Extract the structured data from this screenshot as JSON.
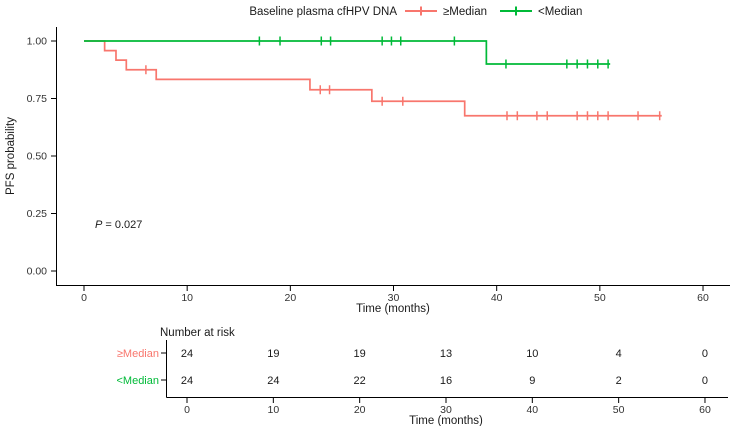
{
  "figure": {
    "background": "#ffffff",
    "text_color": "#333333",
    "axis_color": "#000000"
  },
  "chart_data": {
    "type": "line",
    "subtype": "kaplan_meier_step_curves",
    "legend_title": "Baseline plasma cfHPV DNA",
    "xlabel": "Time (months)",
    "ylabel": "PFS probability",
    "xlim": [
      0,
      62
    ],
    "ylim": [
      0,
      1.0
    ],
    "xticks": [
      0,
      10,
      20,
      30,
      40,
      50,
      60
    ],
    "yticks": [
      0.0,
      0.25,
      0.5,
      0.75,
      1.0
    ],
    "ytick_labels": [
      "0.00",
      "0.25",
      "0.50",
      "0.75",
      "1.00"
    ],
    "grid": "off",
    "legend_position": "top",
    "pvalue": {
      "symbol": "P",
      "rest": " = 0.027"
    },
    "series": [
      {
        "name": "≥Median",
        "color": "#F8766D",
        "steps": [
          [
            0,
            1.0
          ],
          [
            2.0,
            0.958
          ],
          [
            3.1,
            0.917
          ],
          [
            4.1,
            0.875
          ],
          [
            7.0,
            0.833
          ],
          [
            21.9,
            0.788
          ],
          [
            27.9,
            0.738
          ],
          [
            36.9,
            0.675
          ],
          [
            56.0,
            0.675
          ]
        ],
        "censors": [
          [
            6.0,
            0.875
          ],
          [
            22.9,
            0.788
          ],
          [
            23.8,
            0.788
          ],
          [
            28.9,
            0.738
          ],
          [
            30.9,
            0.738
          ],
          [
            41.0,
            0.675
          ],
          [
            42.0,
            0.675
          ],
          [
            43.9,
            0.675
          ],
          [
            44.9,
            0.675
          ],
          [
            47.8,
            0.675
          ],
          [
            48.8,
            0.675
          ],
          [
            49.8,
            0.675
          ],
          [
            50.8,
            0.675
          ],
          [
            53.7,
            0.675
          ],
          [
            55.8,
            0.675
          ]
        ]
      },
      {
        "name": "<Median",
        "color": "#00BA38",
        "steps": [
          [
            0,
            1.0
          ],
          [
            39.0,
            0.9
          ],
          [
            51.0,
            0.9
          ]
        ],
        "censors": [
          [
            17.0,
            1.0
          ],
          [
            19.0,
            1.0
          ],
          [
            23.0,
            1.0
          ],
          [
            23.9,
            1.0
          ],
          [
            28.9,
            1.0
          ],
          [
            29.8,
            1.0
          ],
          [
            30.7,
            1.0
          ],
          [
            35.9,
            1.0
          ],
          [
            40.9,
            0.9
          ],
          [
            46.8,
            0.9
          ],
          [
            47.8,
            0.9
          ],
          [
            48.8,
            0.9
          ],
          [
            49.8,
            0.9
          ],
          [
            50.8,
            0.9
          ]
        ]
      }
    ],
    "risk_table": {
      "title": "Number at risk",
      "xlabel": "Time (months)",
      "times": [
        0,
        10,
        20,
        30,
        40,
        50,
        60
      ],
      "rows": [
        {
          "label": "≥Median",
          "color": "#F8766D",
          "counts": [
            24,
            19,
            19,
            13,
            10,
            4,
            0
          ]
        },
        {
          "label": "<Median",
          "color": "#00BA38",
          "counts": [
            24,
            24,
            22,
            16,
            9,
            2,
            0
          ]
        }
      ]
    }
  }
}
